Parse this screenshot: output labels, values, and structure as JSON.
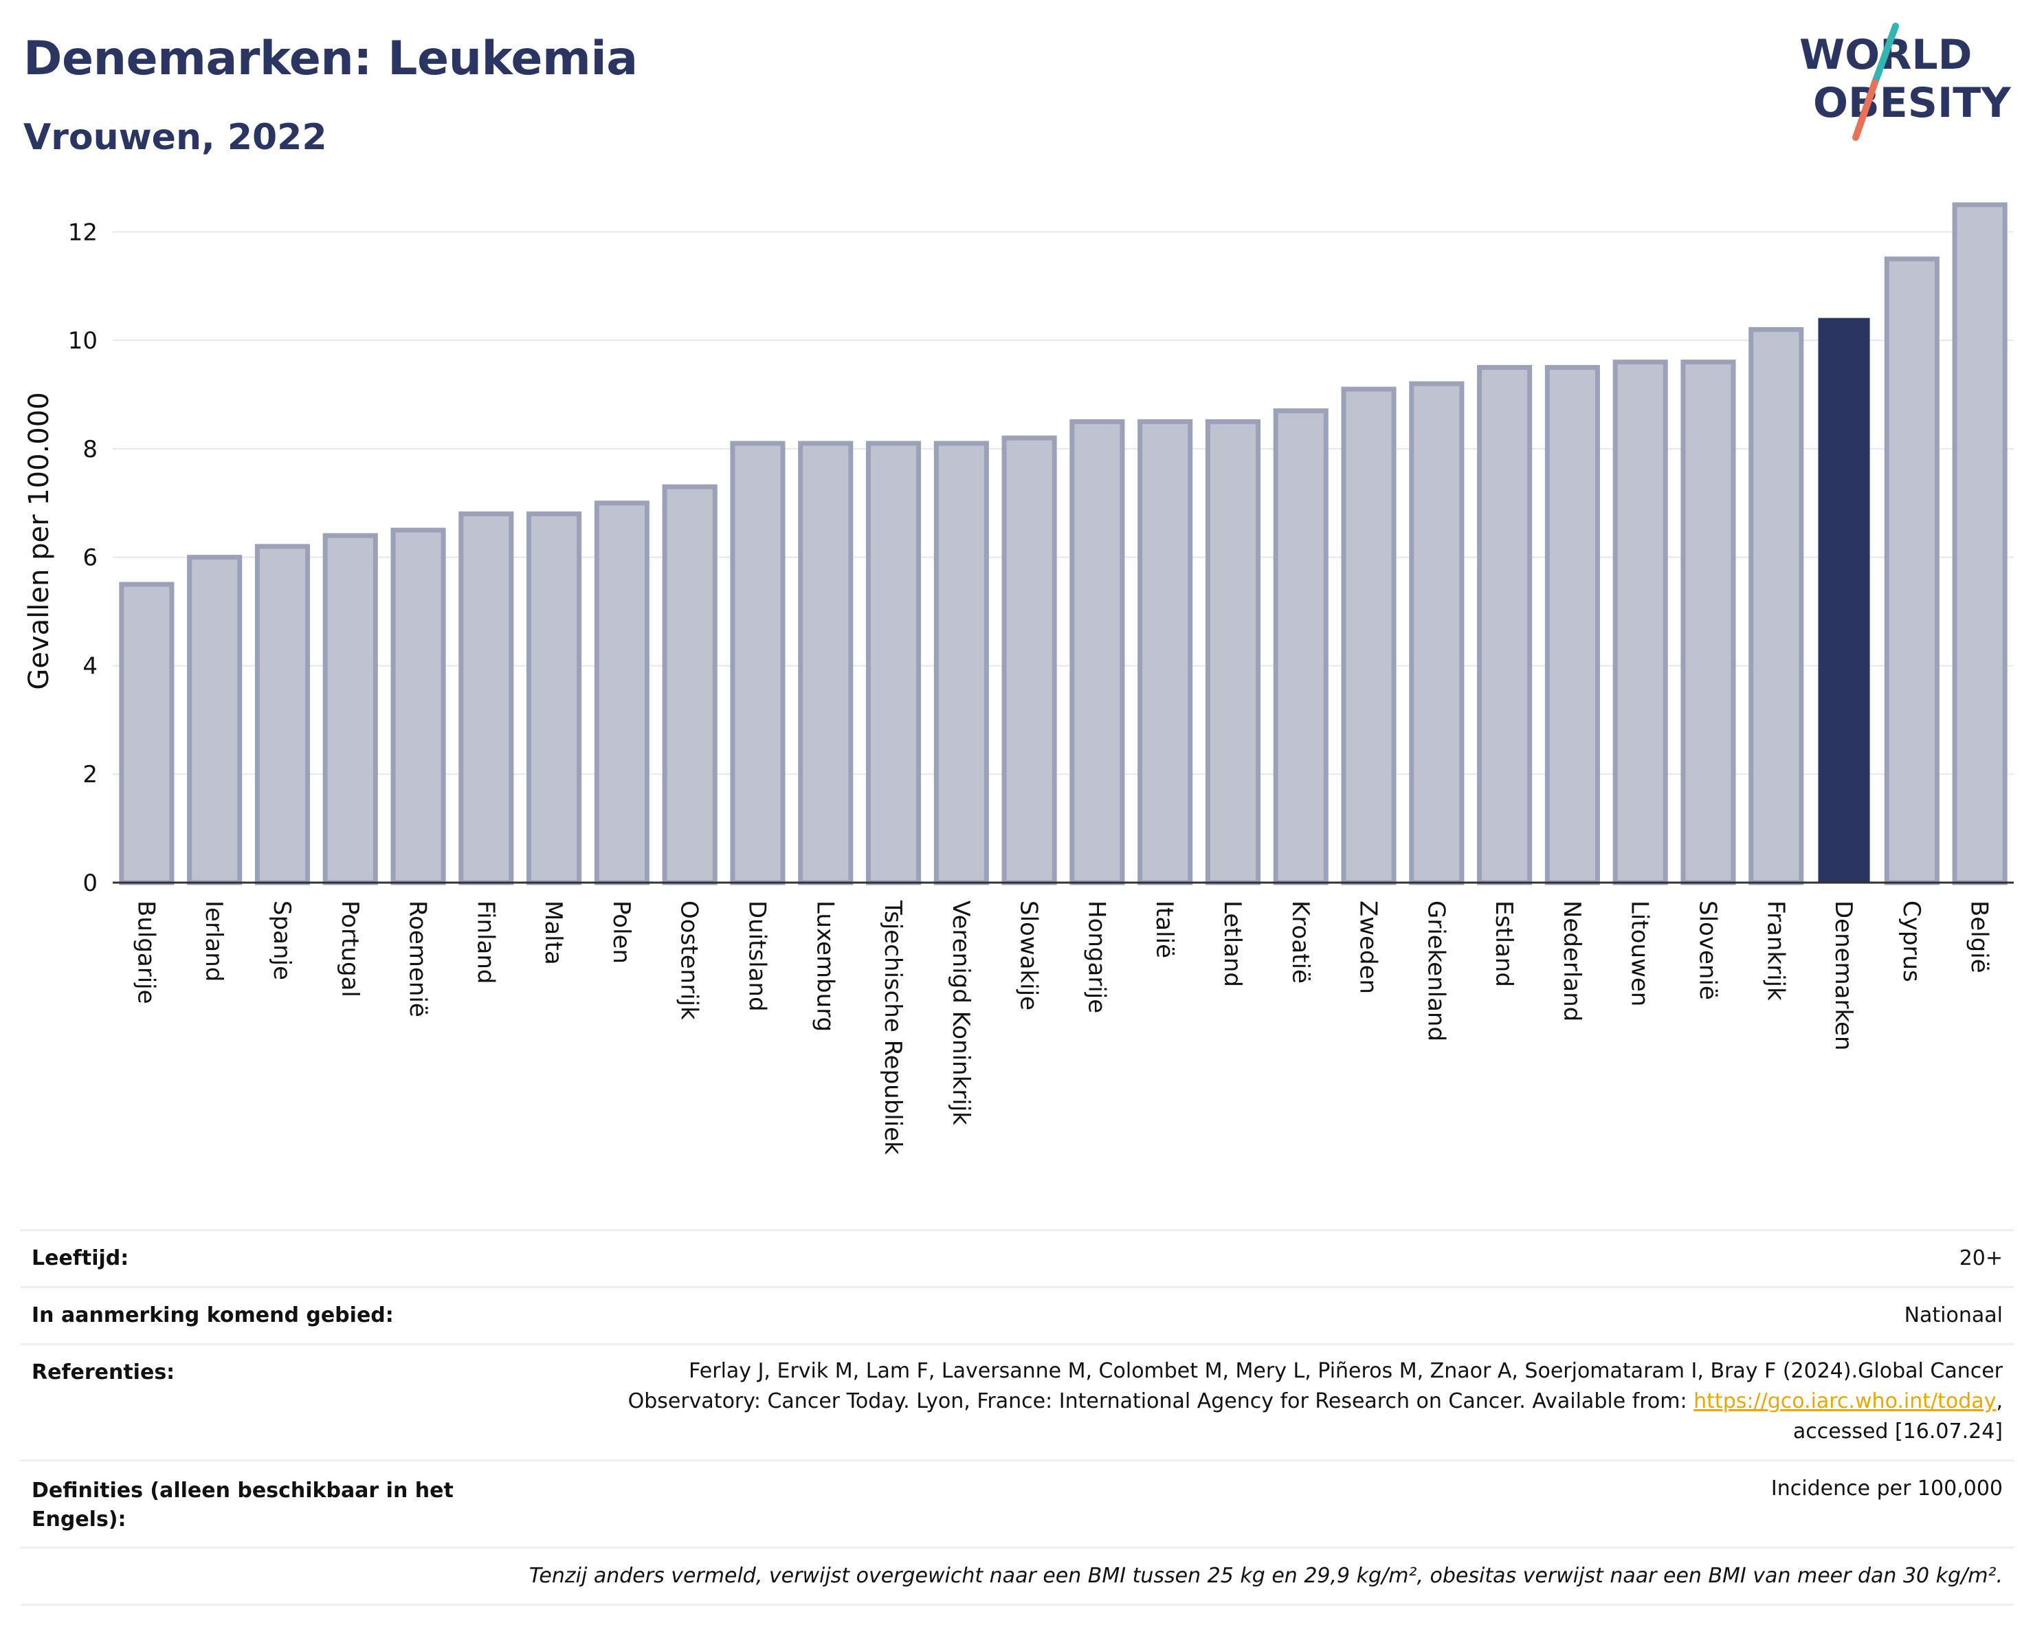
{
  "title": "Denemarken: Leukemia",
  "subtitle": "Vrouwen, 2022",
  "logo": {
    "line1": "WORLD",
    "line2": "OBESITY"
  },
  "colors": {
    "bar": "#bfc3cf",
    "bar_stroke": "#9aa1b9",
    "highlight": "#2b3561",
    "grid": "#e6e8ee",
    "accent_teal": "#33b5b4",
    "accent_coral": "#e8715a"
  },
  "chart_data": {
    "type": "bar",
    "ylabel": "Gevallen per 100.000",
    "xlabel": "",
    "ylim": [
      0,
      12.6
    ],
    "yticks": [
      0,
      2,
      4,
      6,
      8,
      10,
      12
    ],
    "highlight": "Denemarken",
    "categories": [
      "Bulgarije",
      "Ierland",
      "Spanje",
      "Portugal",
      "Roemenië",
      "Finland",
      "Malta",
      "Polen",
      "Oostenrijk",
      "Duitsland",
      "Luxemburg",
      "Tsjechische Republiek",
      "Verenigd Koninkrijk",
      "Slowakije",
      "Hongarije",
      "Italië",
      "Letland",
      "Kroatië",
      "Zweden",
      "Griekenland",
      "Estland",
      "Nederland",
      "Litouwen",
      "Slovenië",
      "Frankrijk",
      "Denemarken",
      "Cyprus",
      "België"
    ],
    "values": [
      5.5,
      6.0,
      6.2,
      6.4,
      6.5,
      6.8,
      6.8,
      7.0,
      7.3,
      8.1,
      8.1,
      8.1,
      8.1,
      8.2,
      8.5,
      8.5,
      8.5,
      8.7,
      9.1,
      9.2,
      9.5,
      9.5,
      9.6,
      9.6,
      10.2,
      10.4,
      11.5,
      12.5
    ]
  },
  "info": {
    "age_label": "Leeftijd:",
    "age_value": "20+",
    "region_label": "In aanmerking komend gebied:",
    "region_value": "Nationaal",
    "ref_label": "Referenties:",
    "ref_line1": "Ferlay J, Ervik M, Lam F, Laversanne M, Colombet M, Mery L, Piñeros M, Znaor A, Soerjomataram I, Bray F (2024).Global Cancer",
    "ref_line2a": "Observatory: Cancer Today. Lyon, France: International Agency for Research on Cancer. Available from: ",
    "ref_link": "https://gco.iarc.who.int/today",
    "ref_line2b": ",",
    "ref_line3": "accessed [16.07.24]",
    "def_label_1": "Definities (alleen beschikbaar in het",
    "def_label_2": "Engels):",
    "def_value": "Incidence per 100,000",
    "note": "Tenzij anders vermeld, verwijst overgewicht naar een BMI tussen 25 kg en 29,9 kg/m², obesitas verwijst naar een BMI van meer dan 30 kg/m²."
  }
}
